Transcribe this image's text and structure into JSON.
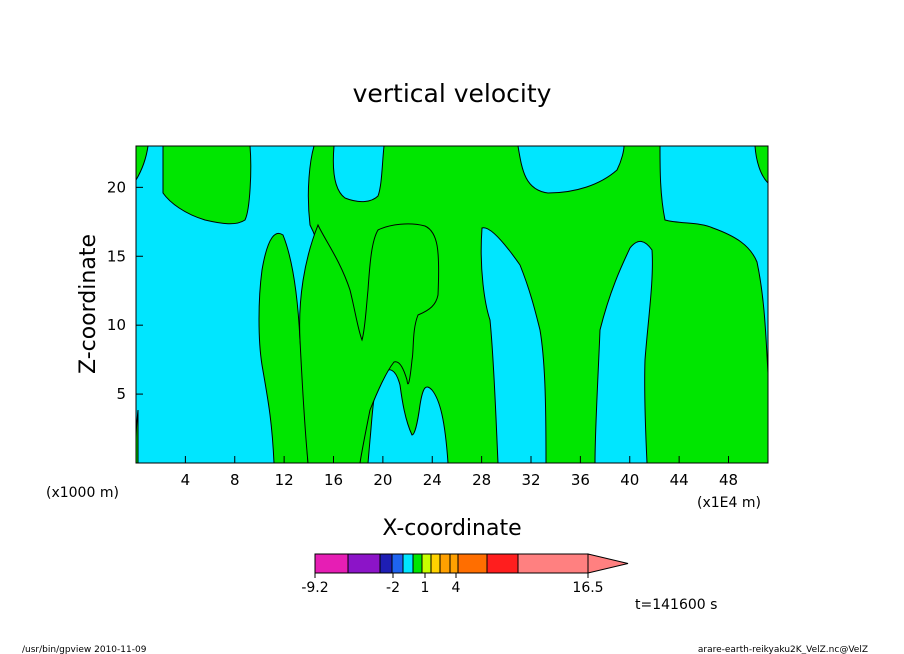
{
  "chart_data": {
    "type": "heatmap",
    "title": "vertical velocity",
    "xlabel": "X-coordinate",
    "ylabel": "Z-coordinate",
    "x_unit_left": "(x1000 m)",
    "x_unit_right": "(x1E4 m)",
    "xlim": [
      0,
      51.2
    ],
    "ylim": [
      0,
      23
    ],
    "x_ticks": [
      4,
      8,
      12,
      16,
      20,
      24,
      28,
      32,
      36,
      40,
      44,
      48
    ],
    "y_ticks": [
      5,
      10,
      15,
      20
    ],
    "colorbar": {
      "colors": [
        "#e61eb4",
        "#8c14c8",
        "#1e1eb4",
        "#1e64f0",
        "#00e6ff",
        "#00e600",
        "#c8ff00",
        "#ffd200",
        "#ffa000",
        "#ff6e00",
        "#ff1e1e",
        "#ff8080"
      ],
      "labels": [
        "-9.2",
        "-2",
        "1",
        "4",
        "16.5"
      ]
    },
    "regions": [
      {
        "name": "negative",
        "color": "#00e6ff"
      },
      {
        "name": "positive",
        "color": "#00e600"
      }
    ],
    "time_label": "t=141600 s"
  },
  "footer": {
    "left": "/usr/bin/gpview   2010-11-09",
    "right": "arare-earth-reikyaku2K_VelZ.nc@VelZ"
  }
}
